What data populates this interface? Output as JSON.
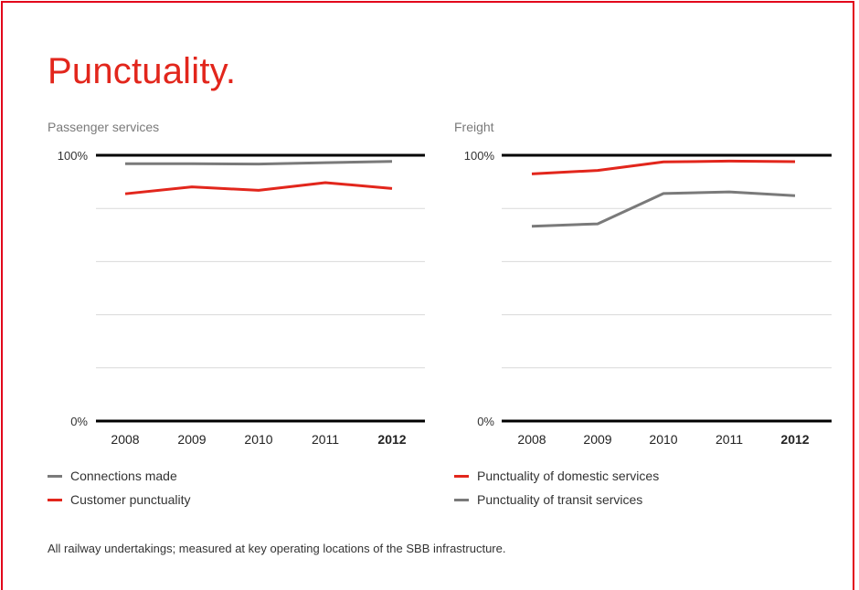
{
  "page": {
    "title": "Punctuality.",
    "footnote": "All railway undertakings; measured at key operating locations of the SBB infrastructure."
  },
  "colors": {
    "red": "#e2261c",
    "gray": "#7a7a7a",
    "axis": "#000000",
    "grid": "#d9d9d9"
  },
  "chart_data": [
    {
      "type": "line",
      "title": "Passenger services",
      "categories": [
        "2008",
        "2009",
        "2010",
        "2011",
        "2012"
      ],
      "highlight_category": "2012",
      "ylim": [
        0,
        100
      ],
      "y_tick_labels": [
        "0%",
        "100%"
      ],
      "grid": true,
      "series": [
        {
          "name": "Connections made",
          "color": "#7a7a7a",
          "values": [
            96.8,
            96.8,
            96.7,
            97.2,
            97.7
          ]
        },
        {
          "name": "Customer punctuality",
          "color": "#e2261c",
          "values": [
            85.5,
            88.1,
            86.8,
            89.7,
            87.5
          ]
        }
      ]
    },
    {
      "type": "line",
      "title": "Freight",
      "categories": [
        "2008",
        "2009",
        "2010",
        "2011",
        "2012"
      ],
      "highlight_category": "2012",
      "ylim": [
        0,
        100
      ],
      "y_tick_labels": [
        "0%",
        "100%"
      ],
      "grid": true,
      "series": [
        {
          "name": "Punctuality of domestic services",
          "color": "#e2261c",
          "values": [
            93,
            94.3,
            97.5,
            97.8,
            97.6
          ]
        },
        {
          "name": "Punctuality of transit services",
          "color": "#7a7a7a",
          "values": [
            73.3,
            74.2,
            85.6,
            86.2,
            84.8
          ]
        }
      ]
    }
  ]
}
